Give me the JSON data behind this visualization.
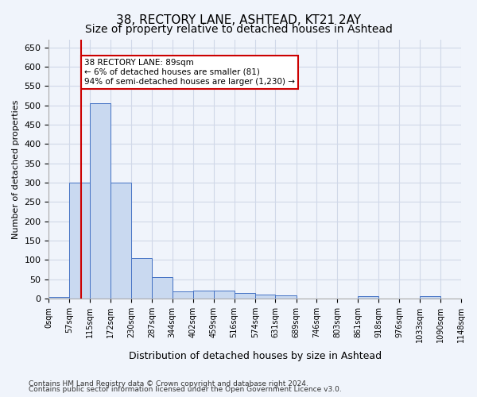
{
  "title1": "38, RECTORY LANE, ASHTEAD, KT21 2AY",
  "title2": "Size of property relative to detached houses in Ashtead",
  "xlabel": "Distribution of detached houses by size in Ashtead",
  "ylabel": "Number of detached properties",
  "bin_labels": [
    "0sqm",
    "57sqm",
    "115sqm",
    "172sqm",
    "230sqm",
    "287sqm",
    "344sqm",
    "402sqm",
    "459sqm",
    "516sqm",
    "574sqm",
    "631sqm",
    "689sqm",
    "746sqm",
    "803sqm",
    "861sqm",
    "918sqm",
    "976sqm",
    "1033sqm",
    "1090sqm",
    "1148sqm"
  ],
  "bin_edges": [
    0,
    57,
    115,
    172,
    230,
    287,
    344,
    402,
    459,
    516,
    574,
    631,
    689,
    746,
    803,
    861,
    918,
    976,
    1033,
    1090,
    1148
  ],
  "bar_heights": [
    3,
    300,
    505,
    300,
    105,
    55,
    18,
    20,
    20,
    15,
    10,
    8,
    0,
    0,
    0,
    5,
    0,
    0,
    5,
    0,
    5
  ],
  "bar_color": "#c9d9f0",
  "bar_edge_color": "#4472c4",
  "property_line_x": 89,
  "property_line_color": "#cc0000",
  "annotation_text": "38 RECTORY LANE: 89sqm\n← 6% of detached houses are smaller (81)\n94% of semi-detached houses are larger (1,230) →",
  "annotation_box_color": "#ffffff",
  "annotation_box_edge": "#cc0000",
  "ylim": [
    0,
    670
  ],
  "yticks": [
    0,
    50,
    100,
    150,
    200,
    250,
    300,
    350,
    400,
    450,
    500,
    550,
    600,
    650
  ],
  "grid_color": "#d0d8e8",
  "footnote1": "Contains HM Land Registry data © Crown copyright and database right 2024.",
  "footnote2": "Contains public sector information licensed under the Open Government Licence v3.0.",
  "bg_color": "#f0f4fb",
  "title1_fontsize": 11,
  "title2_fontsize": 10
}
